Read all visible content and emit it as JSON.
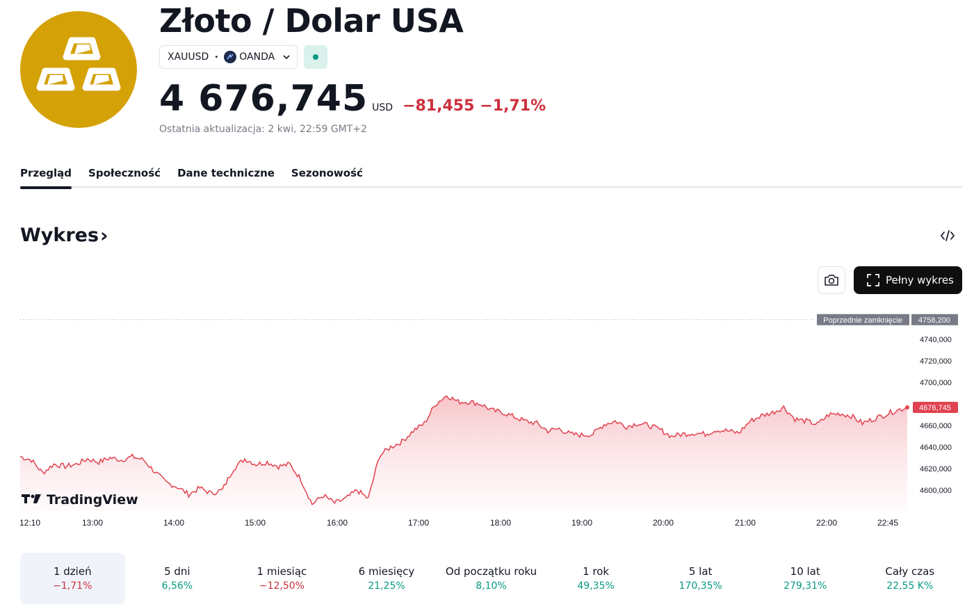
{
  "header": {
    "title": "Złoto / Dolar USA",
    "symbol": "XAUUSD",
    "exchange": "OANDA",
    "price": "4 676,745",
    "currency": "USD",
    "change": "−81,455",
    "change_pct": "−1,71%",
    "last_update": "Ostatnia aktualizacja: 2 kwi, 22:59 GMT+2"
  },
  "tabs": [
    "Przegląd",
    "Społeczność",
    "Dane techniczne",
    "Sezonowość"
  ],
  "section": {
    "title": "Wykres",
    "chevron": "›"
  },
  "toolbar": {
    "full_chart_label": "Pełny wykres",
    "snapshot_icon": "camera-icon",
    "embed_icon": "code-icon"
  },
  "chart_data": {
    "type": "area",
    "x_ticks": [
      "12:10",
      "13:00",
      "14:00",
      "15:00",
      "16:00",
      "17:00",
      "18:00",
      "19:00",
      "20:00",
      "21:00",
      "22:00",
      "22:45"
    ],
    "y_ticks": [
      "4740,000",
      "4720,000",
      "4700,000",
      "4660,000",
      "4640,000",
      "4620,000",
      "4600,000"
    ],
    "ylim": [
      4590,
      4762
    ],
    "prev_close_label": "Poprzednie zamknięcie",
    "prev_close": "4758,200",
    "prev_close_value": 4758.2,
    "last_label": "4676,745",
    "last_value": 4676.745,
    "watermark": "TradingView",
    "series": [
      {
        "values": [
          4631,
          4628,
          4616,
          4624,
          4622,
          4624,
          4629,
          4626,
          4630,
          4628,
          4631,
          4628,
          4617,
          4607,
          4603,
          4596,
          4602,
          4597,
          4600,
          4620,
          4629,
          4624,
          4626,
          4622,
          4624,
          4610,
          4587,
          4595,
          4588,
          4592,
          4600,
          4592,
          4632,
          4640,
          4645,
          4655,
          4662,
          4680,
          4688,
          4682,
          4682,
          4680,
          4674,
          4672,
          4668,
          4664,
          4662,
          4655,
          4657,
          4652,
          4651,
          4652,
          4661,
          4664,
          4659,
          4662,
          4660,
          4656,
          4650,
          4652,
          4653,
          4652,
          4656,
          4655,
          4653,
          4664,
          4669,
          4672,
          4677,
          4666,
          4664,
          4661,
          4670,
          4671,
          4669,
          4662,
          4666,
          4670,
          4674,
          4676.745
        ]
      }
    ],
    "line_color": "#e0424f",
    "fill_color": "#f7c7cb",
    "badge_color": "#e0424f",
    "prev_close_badge_color": "#787b86"
  },
  "periods": [
    {
      "label": "1 dzień",
      "value": "−1,71%",
      "trend": "neg"
    },
    {
      "label": "5 dni",
      "value": "6,56%",
      "trend": "pos"
    },
    {
      "label": "1 miesiąc",
      "value": "−12,50%",
      "trend": "neg"
    },
    {
      "label": "6 miesięcy",
      "value": "21,25%",
      "trend": "pos"
    },
    {
      "label": "Od początku roku",
      "value": "8,10%",
      "trend": "pos"
    },
    {
      "label": "1 rok",
      "value": "49,35%",
      "trend": "pos"
    },
    {
      "label": "5 lat",
      "value": "170,35%",
      "trend": "pos"
    },
    {
      "label": "10 lat",
      "value": "279,31%",
      "trend": "pos"
    },
    {
      "label": "Cały czas",
      "value": "22,55 K%",
      "trend": "pos"
    }
  ]
}
